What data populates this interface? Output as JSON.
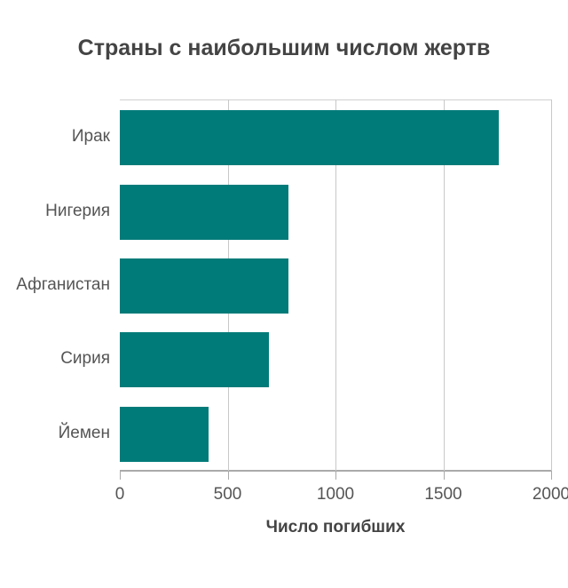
{
  "title": "Страны с наибольшим числом жертв",
  "colors": {
    "bar": "#007b79",
    "grid": "#c8c8c8",
    "text": "#555555"
  },
  "chart_data": {
    "type": "bar",
    "orientation": "horizontal",
    "title": "Страны с наибольшим числом жертв",
    "xlabel": "Число погибших",
    "ylabel": "",
    "categories": [
      "Ирак",
      "Нигерия",
      "Афганистан",
      "Сирия",
      "Йемен"
    ],
    "values": [
      1757,
      783,
      783,
      691,
      411
    ],
    "xlim": [
      0,
      2000
    ],
    "xticks": [
      "0",
      "500",
      "1000",
      "1500",
      "2000"
    ],
    "grid": true,
    "legend": null
  }
}
